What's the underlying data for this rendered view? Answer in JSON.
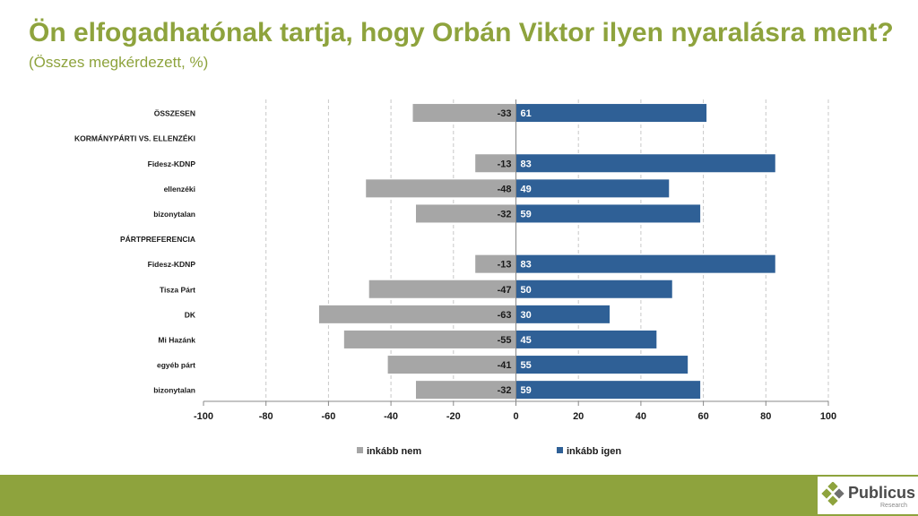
{
  "header": {
    "title": "Ön elfogadhatónak tartja, hogy Orbán Viktor ilyen nyaralásra ment?",
    "subtitle": "(Összes megkérdezett, %)"
  },
  "colors": {
    "accent": "#8ea33d",
    "negative": "#a6a6a6",
    "positive": "#2f6096"
  },
  "chart_data": {
    "type": "bar",
    "orientation": "horizontal",
    "stacked": "diverging",
    "categories": [
      "ÖSSZESEN",
      "KORMÁNYPÁRTI VS. ELLENZÉKI",
      "Fidesz-KDNP",
      "ellenzéki",
      "bizonytalan",
      "PÁRTPREFERENCIA",
      "Fidesz-KDNP",
      "Tisza Párt",
      "DK",
      "Mi Hazánk",
      "egyéb párt",
      "bizonytalan"
    ],
    "series": [
      {
        "name": "inkább nem",
        "values": [
          -33,
          null,
          -13,
          -48,
          -32,
          null,
          -13,
          -47,
          -63,
          -55,
          -41,
          -32
        ]
      },
      {
        "name": "inkább igen",
        "values": [
          61,
          null,
          83,
          49,
          59,
          null,
          83,
          50,
          30,
          45,
          55,
          59
        ]
      }
    ],
    "xlim": [
      -100,
      100
    ],
    "xticks": [
      "-100",
      "-80",
      "-60",
      "-40",
      "-20",
      "0",
      "20",
      "40",
      "60",
      "80",
      "100"
    ],
    "grid": "vertical dashed",
    "legend_position": "bottom",
    "xlabel": "",
    "ylabel": ""
  },
  "footer": {
    "brand": "Publicus",
    "brand_sub": "Research"
  }
}
